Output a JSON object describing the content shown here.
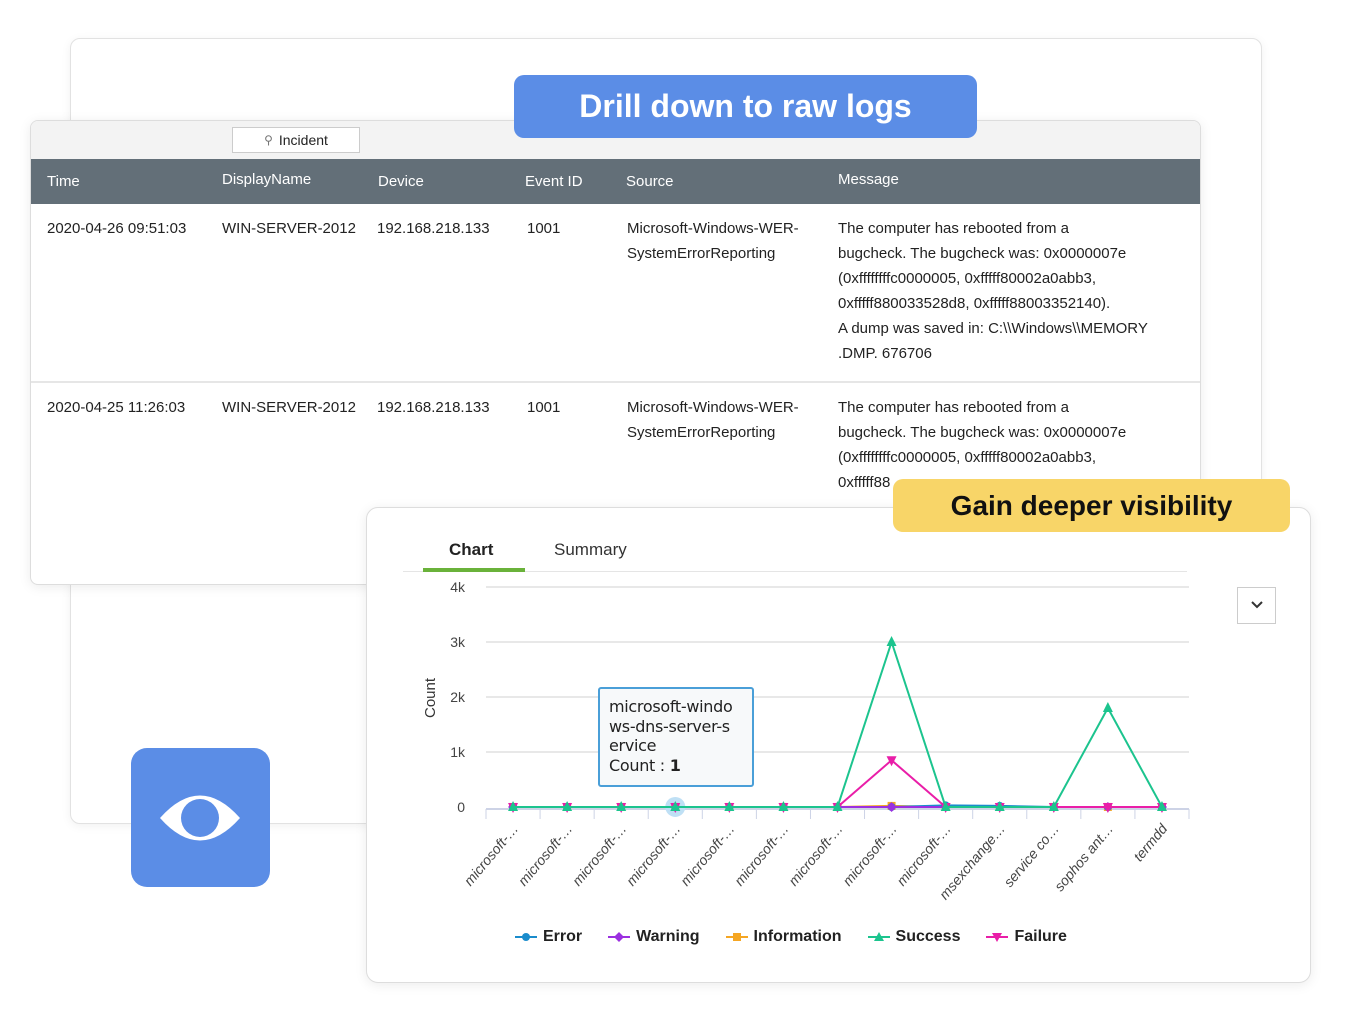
{
  "callouts": {
    "drill": "Drill down to raw logs",
    "visibility": "Gain deeper visibility"
  },
  "logs": {
    "tab": "Incident",
    "columns": [
      "Time",
      "DisplayName",
      "Device",
      "Event ID",
      "Source",
      "Message"
    ],
    "rows": [
      {
        "time": "2020-04-26 09:51:03",
        "display": "WIN-SERVER-2012",
        "device": "192.168.218.133",
        "event": "1001",
        "source": [
          "Microsoft-Windows-WER-",
          "SystemErrorReporting"
        ],
        "message": [
          "The computer has rebooted from a",
          "bugcheck. The bugcheck was: 0x0000007e",
          "(0xffffffffc0000005, 0xfffff80002a0abb3,",
          "0xfffff880033528d8, 0xfffff88003352140).",
          "A dump was saved in: C:\\\\Windows\\\\MEMORY",
          ".DMP.   676706"
        ]
      },
      {
        "time": "2020-04-25 11:26:03",
        "display": "WIN-SERVER-2012",
        "device": "192.168.218.133",
        "event": "1001",
        "source": [
          "Microsoft-Windows-WER-",
          "SystemErrorReporting"
        ],
        "message": [
          "The computer has rebooted from a",
          "bugcheck. The bugcheck was: 0x0000007e",
          "(0xffffffffc0000005, 0xfffff80002a0abb3,",
          "0xfffff88"
        ]
      }
    ]
  },
  "chart_panel": {
    "tabs": [
      "Chart",
      "Summary"
    ],
    "active_tab": "Chart",
    "tooltip": {
      "lines": [
        "microsoft-windo",
        "ws-dns-server-s",
        "ervice"
      ],
      "label": "Count : ",
      "value": "1"
    }
  },
  "chart_data": {
    "type": "line",
    "ylabel": "Count",
    "ylim": [
      0,
      4000
    ],
    "yticks": [
      "0",
      "1k",
      "2k",
      "3k",
      "4k"
    ],
    "grid": true,
    "legend": "bottom",
    "categories": [
      "microsoft-…",
      "microsoft-…",
      "microsoft-…",
      "microsoft-…",
      "microsoft-…",
      "microsoft-…",
      "microsoft-…",
      "microsoft-…",
      "microsoft-…",
      "msexchange…",
      "service co…",
      "sophos ant…",
      "termdd"
    ],
    "series": [
      {
        "name": "Error",
        "color": "#1a8ccc",
        "values": [
          1,
          1,
          1,
          1,
          1,
          1,
          1,
          1,
          30,
          20,
          1,
          1,
          1
        ]
      },
      {
        "name": "Warning",
        "color": "#9b30e0",
        "values": [
          1,
          1,
          1,
          1,
          1,
          1,
          1,
          1,
          1,
          1,
          1,
          1,
          1
        ]
      },
      {
        "name": "Information",
        "color": "#f5a623",
        "values": [
          1,
          1,
          1,
          1,
          1,
          1,
          1,
          20,
          1,
          1,
          1,
          1,
          1
        ]
      },
      {
        "name": "Success",
        "color": "#1cc48e",
        "values": [
          1,
          1,
          1,
          1,
          1,
          1,
          1,
          3000,
          1,
          1,
          1,
          1800,
          1
        ]
      },
      {
        "name": "Failure",
        "color": "#e91ea8",
        "values": [
          1,
          1,
          1,
          1,
          1,
          1,
          1,
          850,
          1,
          1,
          1,
          1,
          1
        ]
      }
    ]
  }
}
